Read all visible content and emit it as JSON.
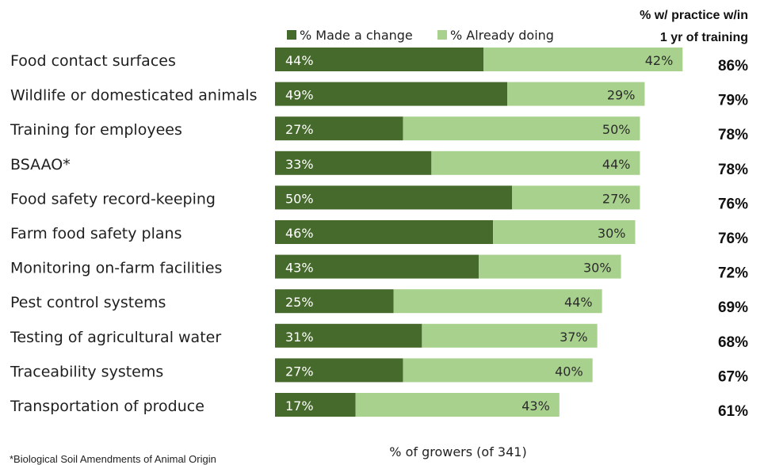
{
  "chart_data": {
    "type": "bar",
    "orientation": "horizontal",
    "stacked": true,
    "categories": [
      "Food contact surfaces",
      "Wildlife or domesticated animals",
      "Training for employees",
      "BSAAO*",
      "Food safety record-keeping",
      "Farm food safety plans",
      "Monitoring on-farm facilities",
      "Pest control systems",
      "Testing of agricultural water",
      "Traceability systems",
      "Transportation of produce"
    ],
    "series": [
      {
        "name": "% Made a change",
        "color": "#466a2b",
        "values": [
          44,
          49,
          27,
          33,
          50,
          46,
          43,
          25,
          31,
          27,
          17
        ],
        "labels": [
          "44%",
          "49%",
          "27%",
          "33%",
          "50%",
          "46%",
          "43%",
          "25%",
          "31%",
          "27%",
          "17%"
        ]
      },
      {
        "name": "% Already doing",
        "color": "#a9d18e",
        "values": [
          42,
          29,
          50,
          44,
          27,
          30,
          30,
          44,
          37,
          40,
          43
        ],
        "labels": [
          "42%",
          "29%",
          "50%",
          "44%",
          "27%",
          "30%",
          "30%",
          "44%",
          "37%",
          "40%",
          "43%"
        ]
      }
    ],
    "totals_header": [
      "% w/ practice w/in",
      "1 yr of training"
    ],
    "totals": [
      "86%",
      "79%",
      "78%",
      "78%",
      "76%",
      "76%",
      "72%",
      "69%",
      "68%",
      "67%",
      "61%"
    ],
    "xlabel": "% of growers (of 341)",
    "footnote": "*Biological Soil Amendments of Animal Origin",
    "legend_position": "top",
    "xlim": [
      0,
      86
    ],
    "grid": false
  }
}
